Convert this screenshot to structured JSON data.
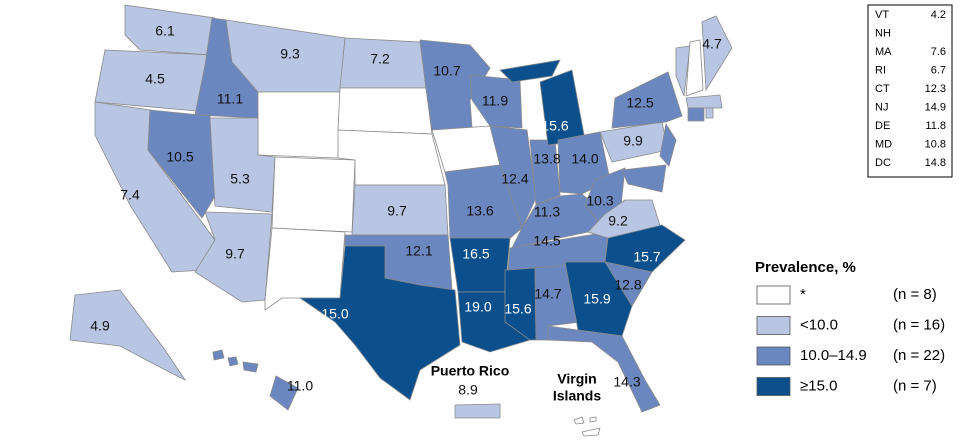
{
  "map": {
    "regions": [
      {
        "label": "6.1",
        "color": "#b8c6e4"
      },
      {
        "label": "4.5",
        "color": "#b8c6e4"
      },
      {
        "label": "7.4",
        "color": "#b8c6e4"
      },
      {
        "label": "11.1",
        "color": "#6b87c0"
      },
      {
        "label": "10.5",
        "color": "#6b87c0"
      },
      {
        "label": "9.3",
        "color": "#b8c6e4"
      },
      {
        "color": "#ffffff"
      },
      {
        "label": "5.3",
        "color": "#b8c6e4"
      },
      {
        "label": "9.7",
        "color": "#b8c6e4"
      },
      {
        "color": "#ffffff"
      },
      {
        "color": "#ffffff"
      },
      {
        "label": "7.2",
        "color": "#b8c6e4"
      },
      {
        "color": "#ffffff"
      },
      {
        "color": "#ffffff"
      },
      {
        "label": "9.7",
        "color": "#b8c6e4"
      },
      {
        "label": "12.1",
        "color": "#6b87c0"
      },
      {
        "label": "15.0",
        "color": "#0b4f8c"
      },
      {
        "label": "10.7",
        "color": "#6b87c0"
      },
      {
        "color": "#ffffff"
      },
      {
        "label": "13.6",
        "color": "#6b87c0"
      },
      {
        "label": "16.5",
        "color": "#0b4f8c"
      },
      {
        "label": "19.0",
        "color": "#0b4f8c"
      },
      {
        "label": "11.9",
        "color": "#6b87c0"
      },
      {
        "label": "12.4",
        "color": "#6b87c0"
      },
      {
        "label": "15.6",
        "color": "#0b4f8c"
      },
      {
        "label": "14.7",
        "color": "#6b87c0"
      },
      {
        "label": "14.5",
        "color": "#6b87c0"
      },
      {
        "label": "11.3",
        "color": "#6b87c0"
      },
      {
        "label": "13.8",
        "color": "#6b87c0"
      },
      {
        "label": "15.6",
        "color": "#0b4f8c"
      },
      {
        "label": "14.0",
        "color": "#6b87c0"
      },
      {
        "label": "10.3",
        "color": "#6b87c0"
      },
      {
        "label": "9.2",
        "color": "#b8c6e4"
      },
      {
        "label": "15.7",
        "color": "#0b4f8c"
      },
      {
        "label": "12.8",
        "color": "#6b87c0"
      },
      {
        "label": "15.9",
        "color": "#0b4f8c"
      },
      {
        "label": "14.3",
        "color": "#6b87c0"
      },
      {
        "label": "9.9",
        "color": "#b8c6e4"
      },
      {
        "label": "12.5",
        "color": "#6b87c0"
      },
      {
        "color": "#6b87c0"
      },
      {
        "color": "#6b87c0"
      },
      {
        "color": "#b8c6e4"
      },
      {
        "color": "#ffffff"
      },
      {
        "label": "4.7",
        "color": "#b8c6e4"
      },
      {
        "color": "#b8c6e4"
      },
      {
        "color": "#6b87c0"
      },
      {
        "color": "#b8c6e4"
      },
      {
        "label": "4.9",
        "color": "#b8c6e4"
      },
      {
        "label": "11.0",
        "color": "#6b87c0"
      },
      {
        "label": "8.9",
        "color": "#b8c6e4"
      },
      {
        "color": "#ffffff"
      }
    ],
    "puerto_rico": "Puerto Rico",
    "virgin_islands": [
      "Virgin",
      "Islands"
    ]
  },
  "inset_table": {
    "rows": [
      [
        "VT",
        "4.2"
      ],
      [
        "NH",
        null
      ],
      [
        "MA",
        "7.6"
      ],
      [
        "RI",
        "6.7"
      ],
      [
        "CT",
        "12.3"
      ],
      [
        "NJ",
        "14.9"
      ],
      [
        "DE",
        "11.8"
      ],
      [
        "MD",
        "10.8"
      ],
      [
        "DC",
        "14.8"
      ]
    ]
  },
  "legend": {
    "title": "Prevalence, %",
    "items": [
      {
        "label": "*",
        "count": "(n = 8)",
        "color": "#ffffff"
      },
      {
        "label": "<10.0",
        "count": "(n = 16)",
        "color": "#b8c6e4"
      },
      {
        "label": "10.0–14.9",
        "count": "(n = 22)",
        "color": "#6b87c0"
      },
      {
        "label": "≥15.0",
        "count": "(n = 7)",
        "color": "#0b4f8c"
      }
    ]
  }
}
